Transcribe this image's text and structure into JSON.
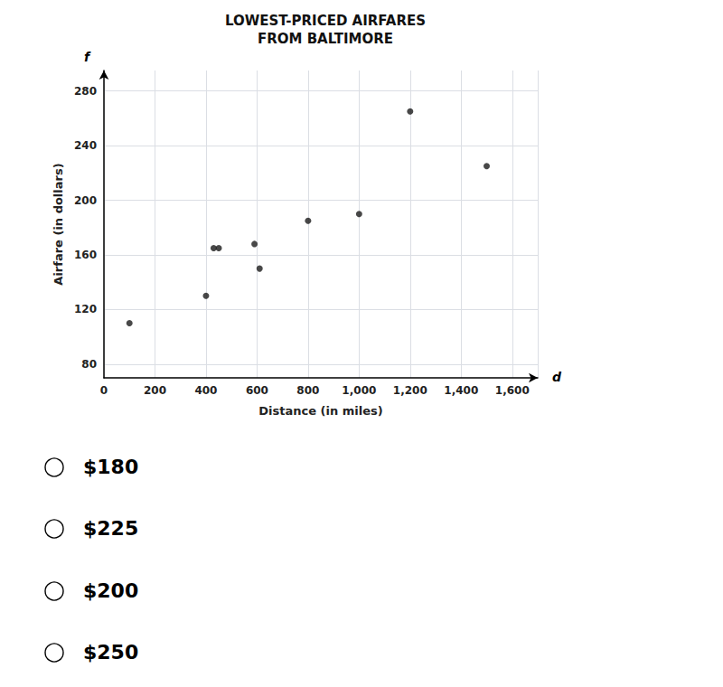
{
  "chart_data": {
    "type": "scatter",
    "title": "LOWEST-PRICED AIRFARES\nFROM BALTIMORE",
    "x_label": "Distance (in miles)",
    "y_label": "Airfare (in dollars)",
    "x": [
      100,
      400,
      430,
      450,
      590,
      610,
      800,
      1000,
      1200,
      1500
    ],
    "values": [
      110,
      130,
      165,
      165,
      168,
      150,
      185,
      190,
      265,
      225
    ],
    "color": "#1a1a1a",
    "xlim": [
      0,
      1700
    ],
    "ylim": [
      70,
      295
    ],
    "xticks": [
      0,
      200,
      400,
      600,
      800,
      {
        "value": 1000,
        "label": "1,000"
      },
      {
        "value": 1200,
        "label": "1,200"
      },
      {
        "value": 1400,
        "label": "1,400"
      },
      {
        "value": 1600,
        "label": "1,600"
      }
    ],
    "yticks": [
      80,
      120,
      160,
      200,
      240,
      280
    ],
    "grid": true,
    "annotations": [
      "d",
      "f",
      "$180",
      "$225",
      "$200",
      "$250"
    ]
  }
}
